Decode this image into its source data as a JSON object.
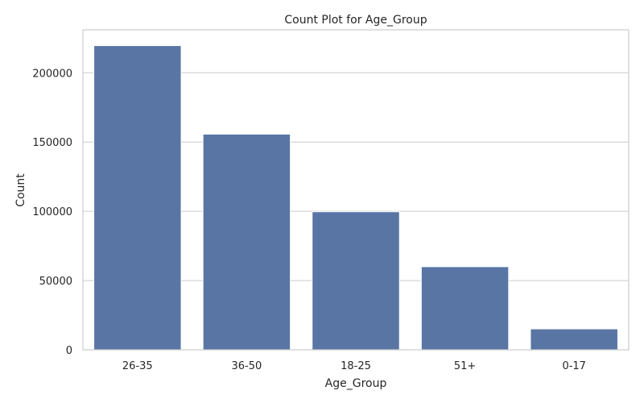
{
  "chart_data": {
    "type": "bar",
    "title": "Count Plot for Age_Group",
    "xlabel": "Age_Group",
    "ylabel": "Count",
    "categories": [
      "26-35",
      "36-50",
      "18-25",
      "51+",
      "0-17"
    ],
    "values": [
      219587,
      155706,
      99660,
      60000,
      15102
    ],
    "ylim": [
      0,
      231000
    ],
    "yticks": [
      0,
      50000,
      100000,
      150000,
      200000
    ],
    "grid": "horizontal",
    "bar_color": "#5875a4",
    "grid_color": "#cccccc",
    "frame_color": "#cccccc"
  }
}
